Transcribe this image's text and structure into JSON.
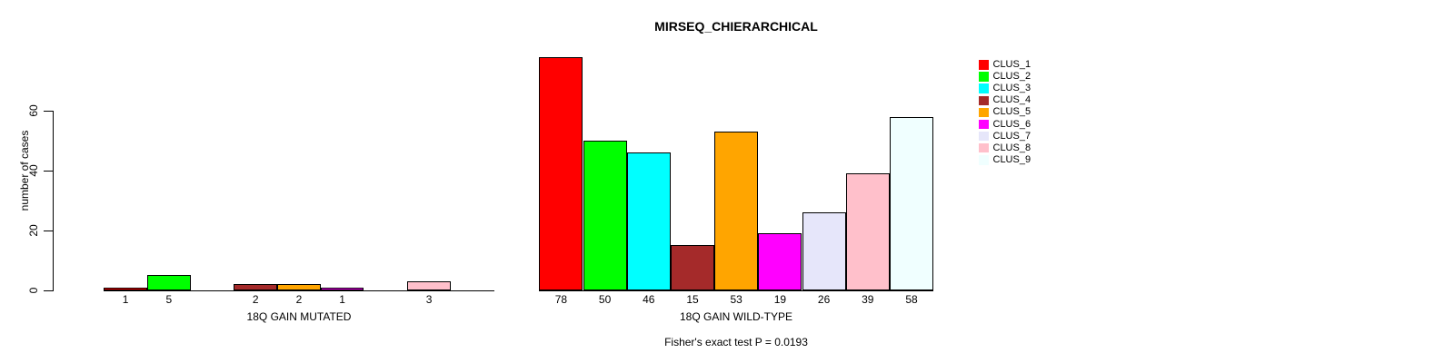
{
  "chart_data": {
    "type": "bar",
    "title": "MIRSEQ_CHIERARCHICAL",
    "ylabel": "number of cases",
    "yticks": [
      0,
      20,
      40,
      60
    ],
    "ylim": [
      0,
      78
    ],
    "grid": false,
    "legend_position": "right",
    "clusters": [
      {
        "name": "CLUS_1",
        "color": "#FF0000"
      },
      {
        "name": "CLUS_2",
        "color": "#00FF00"
      },
      {
        "name": "CLUS_3",
        "color": "#00FFFF"
      },
      {
        "name": "CLUS_4",
        "color": "#A52A2A"
      },
      {
        "name": "CLUS_5",
        "color": "#FFA500"
      },
      {
        "name": "CLUS_6",
        "color": "#FF00FF"
      },
      {
        "name": "CLUS_7",
        "color": "#E6E6FA"
      },
      {
        "name": "CLUS_8",
        "color": "#FFC0CB"
      },
      {
        "name": "CLUS_9",
        "color": "#F0FFFF"
      }
    ],
    "groups": [
      {
        "label": "18Q GAIN MUTATED",
        "values": [
          1,
          5,
          0,
          2,
          2,
          1,
          0,
          3,
          0
        ]
      },
      {
        "label": "18Q GAIN WILD-TYPE",
        "values": [
          78,
          50,
          46,
          15,
          53,
          19,
          26,
          39,
          58
        ]
      }
    ],
    "footnote": "Fisher's exact test P = 0.0193"
  },
  "colors": {
    "background": "#FFFFFF",
    "axis": "#000000",
    "bar_border": "#000000"
  }
}
